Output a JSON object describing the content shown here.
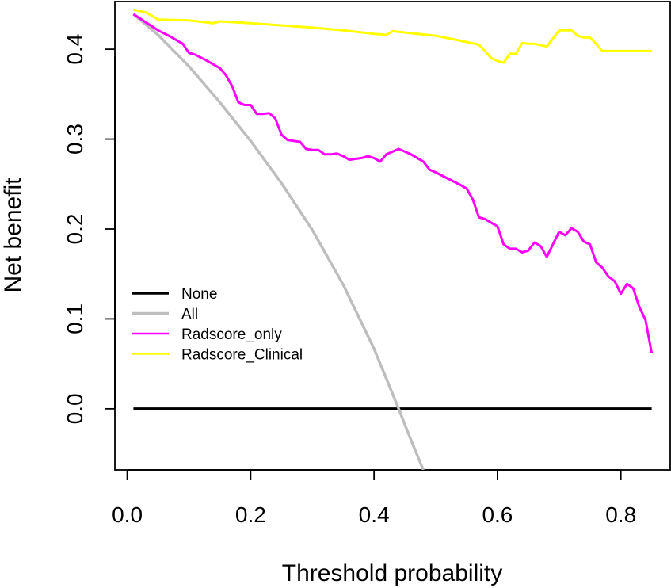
{
  "chart_data": {
    "type": "line",
    "xlabel": "Threshold probability",
    "ylabel": "Net benefit",
    "xlim": [
      -0.02,
      0.88
    ],
    "ylim": [
      -0.068,
      0.453
    ],
    "xticks": [
      0.0,
      0.2,
      0.4,
      0.6,
      0.8
    ],
    "xtick_labels": [
      "0.0",
      "0.2",
      "0.4",
      "0.6",
      "0.8"
    ],
    "yticks": [
      0.0,
      0.1,
      0.2,
      0.3,
      0.4
    ],
    "ytick_labels": [
      "0.0",
      "0.1",
      "0.2",
      "0.3",
      "0.4"
    ],
    "legend_position": "left-middle",
    "series": [
      {
        "name": "None",
        "color": "#000000",
        "x": [
          0.01,
          0.85
        ],
        "y": [
          0.0,
          0.0
        ]
      },
      {
        "name": "All",
        "color": "#bebebe",
        "x": [
          0.01,
          0.05,
          0.1,
          0.15,
          0.2,
          0.25,
          0.3,
          0.35,
          0.4,
          0.44,
          0.46,
          0.48
        ],
        "y": [
          0.439,
          0.416,
          0.381,
          0.341,
          0.298,
          0.251,
          0.199,
          0.138,
          0.067,
          0.0,
          -0.035,
          -0.068
        ]
      },
      {
        "name": "Radscore_only",
        "color": "#ff00ff",
        "x": [
          0.01,
          0.03,
          0.05,
          0.07,
          0.09,
          0.1,
          0.11,
          0.13,
          0.15,
          0.16,
          0.17,
          0.18,
          0.19,
          0.2,
          0.21,
          0.22,
          0.23,
          0.24,
          0.25,
          0.26,
          0.27,
          0.28,
          0.29,
          0.3,
          0.31,
          0.32,
          0.33,
          0.34,
          0.35,
          0.36,
          0.37,
          0.38,
          0.39,
          0.4,
          0.41,
          0.42,
          0.43,
          0.44,
          0.45,
          0.46,
          0.47,
          0.48,
          0.49,
          0.5,
          0.52,
          0.54,
          0.55,
          0.56,
          0.57,
          0.58,
          0.59,
          0.6,
          0.61,
          0.62,
          0.63,
          0.64,
          0.65,
          0.66,
          0.67,
          0.68,
          0.69,
          0.7,
          0.71,
          0.72,
          0.73,
          0.74,
          0.75,
          0.76,
          0.77,
          0.78,
          0.79,
          0.8,
          0.81,
          0.82,
          0.83,
          0.84,
          0.85
        ],
        "y": [
          0.439,
          0.43,
          0.421,
          0.414,
          0.406,
          0.396,
          0.394,
          0.387,
          0.379,
          0.371,
          0.359,
          0.341,
          0.338,
          0.338,
          0.328,
          0.328,
          0.329,
          0.323,
          0.305,
          0.299,
          0.298,
          0.297,
          0.289,
          0.288,
          0.288,
          0.283,
          0.283,
          0.284,
          0.281,
          0.277,
          0.278,
          0.279,
          0.281,
          0.279,
          0.275,
          0.283,
          0.286,
          0.289,
          0.286,
          0.283,
          0.279,
          0.275,
          0.266,
          0.263,
          0.256,
          0.249,
          0.245,
          0.233,
          0.213,
          0.211,
          0.207,
          0.203,
          0.183,
          0.178,
          0.178,
          0.174,
          0.176,
          0.185,
          0.181,
          0.169,
          0.183,
          0.197,
          0.193,
          0.201,
          0.197,
          0.186,
          0.183,
          0.163,
          0.157,
          0.147,
          0.142,
          0.128,
          0.139,
          0.134,
          0.113,
          0.099,
          0.062
        ]
      },
      {
        "name": "Radscore_Clinical",
        "color": "#ffff00",
        "x": [
          0.01,
          0.03,
          0.04,
          0.05,
          0.1,
          0.14,
          0.15,
          0.2,
          0.3,
          0.35,
          0.4,
          0.42,
          0.43,
          0.5,
          0.55,
          0.57,
          0.58,
          0.59,
          0.6,
          0.61,
          0.62,
          0.63,
          0.64,
          0.65,
          0.66,
          0.68,
          0.69,
          0.7,
          0.71,
          0.72,
          0.73,
          0.74,
          0.75,
          0.76,
          0.77,
          0.78,
          0.8,
          0.85
        ],
        "y": [
          0.444,
          0.441,
          0.437,
          0.433,
          0.432,
          0.429,
          0.431,
          0.429,
          0.424,
          0.421,
          0.417,
          0.416,
          0.42,
          0.415,
          0.408,
          0.405,
          0.398,
          0.39,
          0.387,
          0.385,
          0.395,
          0.395,
          0.407,
          0.406,
          0.406,
          0.403,
          0.412,
          0.421,
          0.421,
          0.421,
          0.415,
          0.413,
          0.413,
          0.406,
          0.398,
          0.398,
          0.398,
          0.398
        ]
      }
    ]
  }
}
